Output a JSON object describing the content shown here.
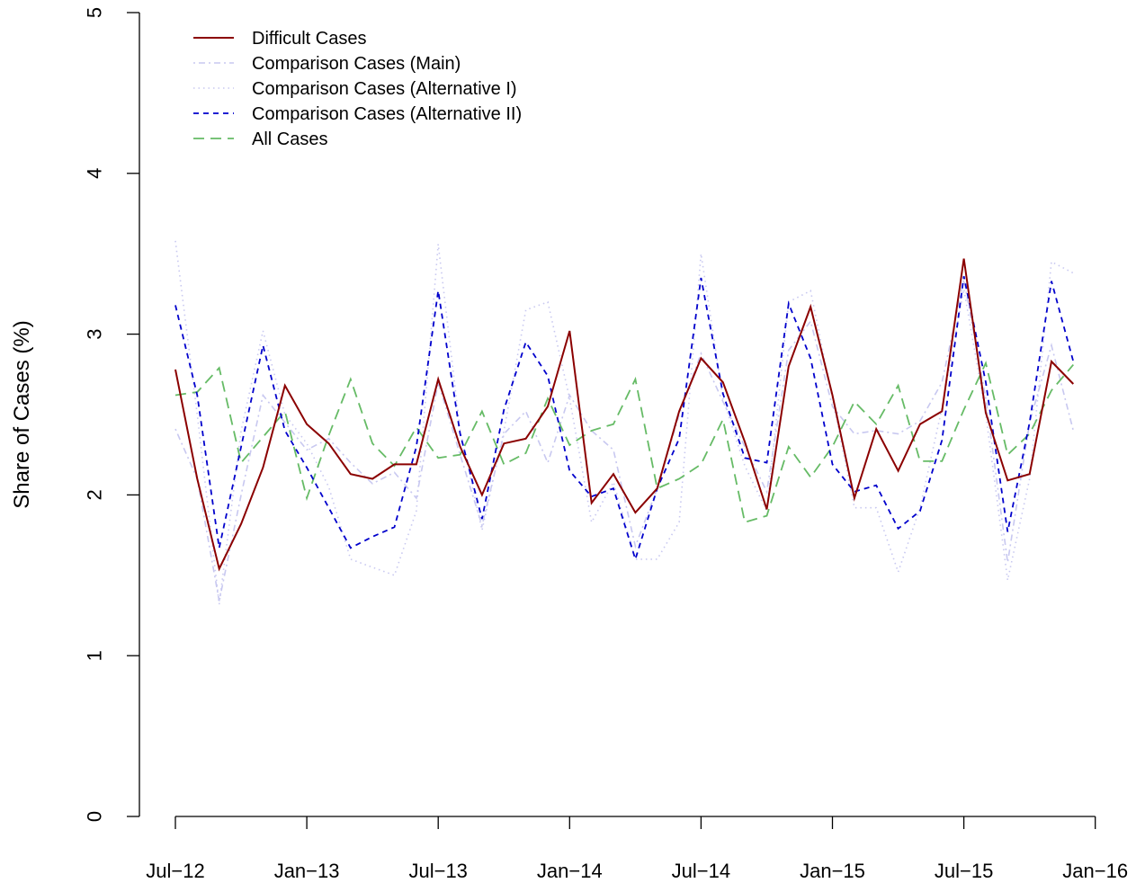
{
  "chart_data": {
    "type": "line",
    "title": "",
    "xlabel": "",
    "ylabel": "Share of Cases (%)",
    "ylim": [
      0,
      5
    ],
    "y_ticks": [
      0,
      1,
      2,
      3,
      4,
      5
    ],
    "x_ticks": [
      {
        "month": 0,
        "label": "Jul−12"
      },
      {
        "month": 6,
        "label": "Jan−13"
      },
      {
        "month": 12,
        "label": "Jul−13"
      },
      {
        "month": 18,
        "label": "Jan−14"
      },
      {
        "month": 24,
        "label": "Jul−14"
      },
      {
        "month": 30,
        "label": "Jan−15"
      },
      {
        "month": 36,
        "label": "Jul−15"
      },
      {
        "month": 42,
        "label": "Jan−16"
      }
    ],
    "x_months": [
      "Jul-12",
      "Aug-12",
      "Sep-12",
      "Oct-12",
      "Nov-12",
      "Dec-12",
      "Jan-13",
      "Feb-13",
      "Mar-13",
      "Apr-13",
      "May-13",
      "Jun-13",
      "Jul-13",
      "Aug-13",
      "Sep-13",
      "Oct-13",
      "Nov-13",
      "Dec-13",
      "Jan-14",
      "Feb-14",
      "Mar-14",
      "Apr-14",
      "May-14",
      "Jun-14",
      "Jul-14",
      "Aug-14",
      "Sep-14",
      "Oct-14",
      "Nov-14",
      "Dec-14",
      "Jan-15",
      "Feb-15",
      "Mar-15",
      "Apr-15",
      "May-15",
      "Jun-15",
      "Jul-15",
      "Aug-15",
      "Sep-15",
      "Oct-15",
      "Nov-15",
      "Dec-15"
    ],
    "grid": false,
    "legend_position": "top-left",
    "series": [
      {
        "name": "Difficult Cases",
        "color": "#8B0000",
        "dash": "solid",
        "values": [
          2.78,
          2.1,
          1.54,
          1.82,
          2.17,
          2.68,
          2.44,
          2.32,
          2.13,
          2.1,
          2.19,
          2.19,
          2.72,
          2.3,
          2.0,
          2.32,
          2.35,
          2.55,
          3.02,
          1.95,
          2.13,
          1.89,
          2.04,
          2.52,
          2.85,
          2.7,
          2.33,
          1.91,
          2.8,
          3.17,
          2.62,
          1.98,
          2.41,
          2.15,
          2.44,
          2.52,
          3.47,
          2.51,
          2.09,
          2.13,
          2.83,
          2.69
        ]
      },
      {
        "name": "Comparison Cases (Main)",
        "color": "#c8c8f0",
        "dash": "dashdot",
        "values": [
          2.41,
          2.1,
          1.34,
          2.0,
          2.62,
          2.45,
          2.28,
          2.35,
          2.2,
          2.07,
          2.14,
          1.98,
          2.7,
          2.25,
          1.81,
          2.38,
          2.52,
          2.2,
          2.62,
          2.4,
          2.28,
          1.68,
          2.04,
          2.5,
          2.88,
          2.58,
          2.3,
          2.02,
          2.9,
          3.08,
          2.55,
          2.38,
          2.4,
          2.38,
          2.46,
          2.7,
          3.34,
          2.6,
          1.58,
          2.45,
          2.93,
          2.4
        ]
      },
      {
        "name": "Comparison Cases (Alternative I)",
        "color": "#c8c8f0",
        "dash": "dotted",
        "values": [
          3.58,
          2.5,
          1.32,
          2.4,
          3.02,
          2.5,
          2.32,
          2.05,
          1.6,
          1.55,
          1.5,
          1.9,
          3.56,
          2.4,
          1.78,
          2.4,
          3.15,
          3.2,
          2.6,
          1.83,
          2.08,
          1.6,
          1.6,
          1.83,
          3.5,
          2.6,
          2.18,
          1.9,
          3.2,
          3.27,
          2.6,
          1.92,
          1.92,
          1.52,
          1.92,
          2.54,
          3.28,
          2.5,
          1.47,
          2.1,
          3.45,
          3.38
        ]
      },
      {
        "name": "Comparison Cases (Alternative II)",
        "color": "#0000CC",
        "dash": "dashed",
        "values": [
          3.18,
          2.62,
          1.67,
          2.3,
          2.93,
          2.4,
          2.17,
          1.92,
          1.67,
          1.74,
          1.8,
          2.3,
          3.27,
          2.38,
          1.85,
          2.53,
          2.95,
          2.74,
          2.15,
          1.99,
          2.04,
          1.6,
          2.04,
          2.35,
          3.35,
          2.63,
          2.23,
          2.2,
          3.19,
          2.85,
          2.19,
          2.02,
          2.06,
          1.79,
          1.9,
          2.34,
          3.36,
          2.7,
          1.77,
          2.45,
          3.33,
          2.83
        ]
      },
      {
        "name": "All Cases",
        "color": "#66BB66",
        "dash": "longdash",
        "values": [
          2.62,
          2.64,
          2.79,
          2.2,
          2.36,
          2.52,
          1.98,
          2.37,
          2.72,
          2.32,
          2.18,
          2.42,
          2.23,
          2.25,
          2.52,
          2.19,
          2.26,
          2.6,
          2.31,
          2.4,
          2.44,
          2.72,
          2.04,
          2.1,
          2.19,
          2.47,
          1.83,
          1.87,
          2.3,
          2.11,
          2.3,
          2.58,
          2.44,
          2.68,
          2.21,
          2.21,
          2.53,
          2.82,
          2.25,
          2.38,
          2.65,
          2.81
        ]
      }
    ]
  }
}
